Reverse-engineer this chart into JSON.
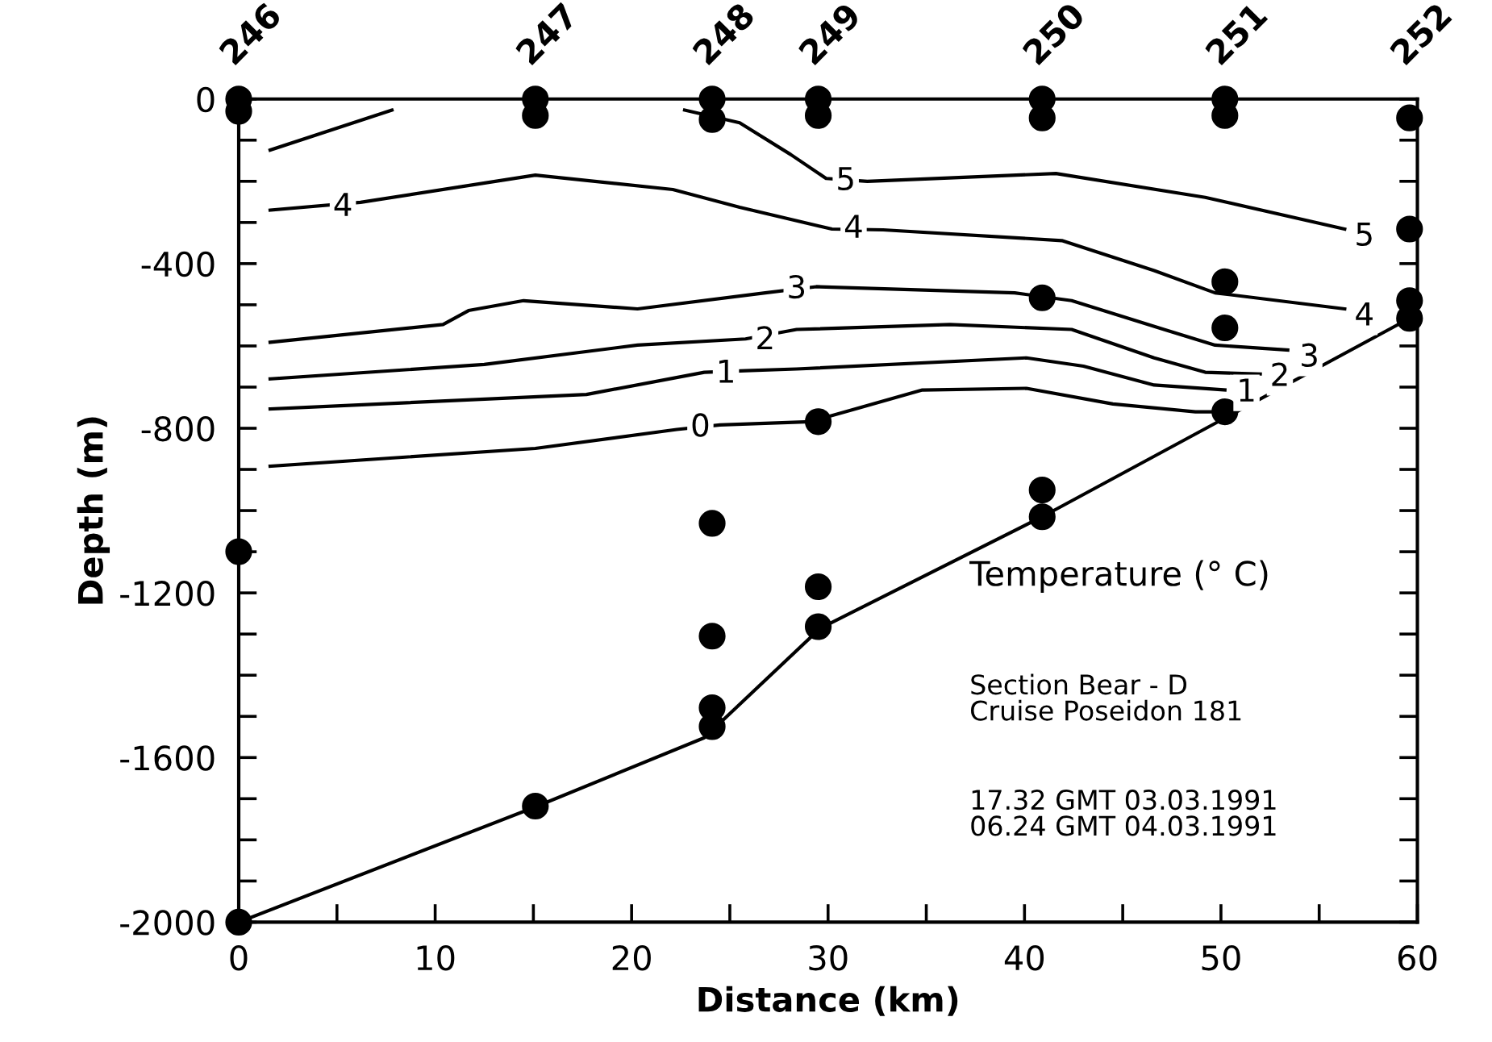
{
  "chart_data": {
    "type": "line",
    "xlabel": "Distance (km)",
    "ylabel": "Depth (m)",
    "xlim": [
      0,
      60
    ],
    "ylim": [
      -2000,
      0
    ],
    "xticks": [
      0,
      {
        "value": 5,
        "label": null
      },
      10,
      {
        "value": 15,
        "label": null
      },
      20,
      {
        "value": 25,
        "label": null
      },
      30,
      {
        "value": 35,
        "label": null
      },
      40,
      {
        "value": 45,
        "label": null
      },
      50,
      {
        "value": 55,
        "label": null
      },
      60
    ],
    "yticks": [
      -2000,
      {
        "value": -1900,
        "label": null
      },
      {
        "value": -1800,
        "label": null
      },
      {
        "value": -1700,
        "label": null
      },
      -1600,
      {
        "value": -1500,
        "label": null
      },
      {
        "value": -1400,
        "label": null
      },
      {
        "value": -1300,
        "label": null
      },
      -1200,
      {
        "value": -1100,
        "label": null
      },
      {
        "value": -1000,
        "label": null
      },
      {
        "value": -900,
        "label": null
      },
      -800,
      {
        "value": -700,
        "label": null
      },
      {
        "value": -600,
        "label": null
      },
      {
        "value": -500,
        "label": null
      },
      -400,
      {
        "value": -300,
        "label": null
      },
      {
        "value": -200,
        "label": null
      },
      {
        "value": -100,
        "label": null
      },
      0
    ],
    "legend": false,
    "grid": false,
    "series": [
      {
        "color": "#000000",
        "x": [
          1.6,
          7.8,
          null,
          22.7,
          25.5,
          28.1,
          29.9,
          32,
          41.6,
          49.2,
          56.3
        ],
        "values": [
          -124,
          -27,
          null,
          -27,
          -58,
          -135,
          -193,
          -200,
          -181,
          -239,
          -316
        ]
      },
      {
        "color": "#000000",
        "x": [
          1.6,
          6.2,
          15.1,
          22.1,
          25.5,
          30.2,
          32.8,
          41.9,
          46.6,
          49.7,
          56.3
        ],
        "values": [
          -270,
          -251,
          -185,
          -220,
          -263,
          -316,
          -318,
          -344,
          -417,
          -471,
          -510
        ]
      },
      {
        "color": "#000000",
        "x": [
          1.6,
          10.4,
          11.7,
          14.5,
          20.3,
          26.8,
          29.4,
          39.5,
          42.4,
          47.1,
          49.7,
          53.4
        ],
        "values": [
          -591,
          -548,
          -514,
          -490,
          -510,
          -471,
          -456,
          -471,
          -490,
          -560,
          -598,
          -610
        ]
      },
      {
        "color": "#000000",
        "x": [
          1.6,
          12.5,
          20.3,
          25.8,
          28.4,
          36.2,
          42.4,
          46.6,
          49.2,
          52
        ],
        "values": [
          -680,
          -645,
          -598,
          -583,
          -560,
          -548,
          -560,
          -629,
          -664,
          -668
        ]
      },
      {
        "color": "#000000",
        "x": [
          1.6,
          17.7,
          23.7,
          25.8,
          28.4,
          40.1,
          43,
          46.6,
          50.2
        ],
        "values": [
          -753,
          -718,
          -664,
          -660,
          -656,
          -629,
          -649,
          -695,
          -707
        ]
      },
      {
        "color": "#000000",
        "x": [
          1.6,
          15.1,
          22.3,
          24.5,
          29.1,
          34.8,
          40.1,
          44.5,
          48.7,
          49.7
        ],
        "values": [
          -892,
          -849,
          -803,
          -792,
          -784,
          -707,
          -703,
          -741,
          -760,
          -760
        ]
      },
      {
        "color": "#000000",
        "x": [
          0,
          15.1,
          23.7,
          29.6,
          40.9,
          59.6
        ],
        "values": [
          -2000,
          -1720,
          -1552,
          -1286,
          -1015,
          -533
        ]
      },
      {
        "type": "scatter",
        "color": "#000000",
        "marker": "circle",
        "x": [
          0,
          0,
          0,
          0,
          15.1,
          15.1,
          15.1,
          24.1,
          24.1,
          24.1,
          24.1,
          24.1,
          24.1,
          29.5,
          29.5,
          29.5,
          29.5,
          29.5,
          40.9,
          40.9,
          40.9,
          40.9,
          40.9,
          50.2,
          50.2,
          50.2,
          50.2,
          50.2,
          59.6,
          59.6,
          59.6,
          59.6
        ],
        "values": [
          0,
          -30,
          -1100,
          -2000,
          0,
          -40,
          -1718,
          0,
          -50,
          -1031,
          -1305,
          -1479,
          -1525,
          0,
          -40,
          -784,
          -1185,
          -1282,
          0,
          -46,
          -483,
          -950,
          -1015,
          0,
          -40,
          -444,
          -556,
          -760,
          -46,
          -316,
          -490,
          -533
        ]
      }
    ],
    "annotations": [
      {
        "text": "5",
        "x": 30.9,
        "y": -200
      },
      {
        "text": "5",
        "x": 57.3,
        "y": -335
      },
      {
        "text": "4",
        "x": 5.3,
        "y": -263
      },
      {
        "text": "4",
        "x": 31.3,
        "y": -316
      },
      {
        "text": "4",
        "x": 57.3,
        "y": -529
      },
      {
        "text": "3",
        "x": 28.4,
        "y": -463
      },
      {
        "text": "3",
        "x": 54.5,
        "y": -629
      },
      {
        "text": "2",
        "x": 26.8,
        "y": -587
      },
      {
        "text": "2",
        "x": 53,
        "y": -676
      },
      {
        "text": "1",
        "x": 24.8,
        "y": -668
      },
      {
        "text": "1",
        "x": 51.3,
        "y": -714
      },
      {
        "text": "0",
        "x": 23.5,
        "y": -799
      },
      {
        "text": "246",
        "x": 0,
        "y": 0
      },
      {
        "text": "247",
        "x": 15.1,
        "y": 0
      },
      {
        "text": "248",
        "x": 24.1,
        "y": 0
      },
      {
        "text": "249",
        "x": 29.5,
        "y": 0
      },
      {
        "text": "250",
        "x": 40.9,
        "y": 0
      },
      {
        "text": "251",
        "x": 50.2,
        "y": 0
      },
      {
        "text": "252",
        "x": 59.6,
        "y": 0
      },
      "Temperature (° C)",
      "Section Bear - D\nCruise Poseidon 181",
      "17.32 GMT 03.03.1991\n06.24 GMT 04.03.1991"
    ]
  }
}
